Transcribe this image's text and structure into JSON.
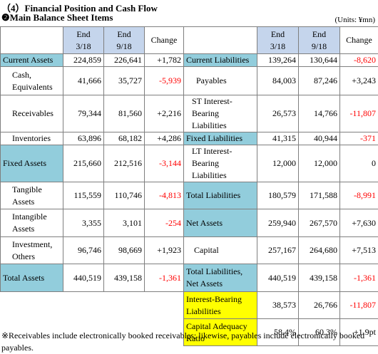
{
  "header": {
    "title": "（4）Financial Position and Cash Flow",
    "subtitle": "❷Main Balance Sheet Items",
    "units": "(Units: ¥mn)"
  },
  "table": {
    "left_header": [
      "End\n3/18",
      "End\n9/18",
      "Change"
    ],
    "right_header": [
      "End\n3/18",
      "End\n9/18",
      "Change"
    ],
    "left_rows": [
      [
        "Current Assets",
        "224,859",
        "226,641",
        "+1,782"
      ],
      [
        "Cash,\nEquivalents",
        "41,666",
        "35,727",
        "-5,939"
      ],
      [
        "Receivables",
        "79,344",
        "81,560",
        "+2,216"
      ],
      [
        "Inventories",
        "63,896",
        "68,182",
        "+4,286"
      ],
      [
        "Fixed Assets",
        "215,660",
        "212,516",
        "-3,144"
      ],
      [
        "Tangible\nAssets",
        "115,559",
        "110,746",
        "-4,813"
      ],
      [
        "Intangible\nAssets",
        "3,355",
        "3,101",
        "-254"
      ],
      [
        "Investment,\nOthers",
        "96,746",
        "98,669",
        "+1,923"
      ],
      [
        "Total Assets",
        "440,519",
        "439,158",
        "-1,361"
      ]
    ],
    "right_rows": [
      [
        "Current Liabilities",
        "139,264",
        "130,644",
        "-8,620"
      ],
      [
        "Payables",
        "84,003",
        "87,246",
        "+3,243"
      ],
      [
        "ST Interest-\nBearing Liabilities",
        "26,573",
        "14,766",
        "-11,807"
      ],
      [
        "Fixed Liabilities",
        "41,315",
        "40,944",
        "-371"
      ],
      [
        "LT Interest-\nBearing Liabilities",
        "12,000",
        "12,000",
        "0"
      ],
      [
        "Total Liabilities",
        "180,579",
        "171,588",
        "-8,991"
      ],
      [
        "Net Assets",
        "259,940",
        "267,570",
        "+7,630"
      ],
      [
        "Capital",
        "257,167",
        "264,680",
        "+7,513"
      ],
      [
        "Total Liabilities,\nNet Assets",
        "440,519",
        "439,158",
        "-1,361"
      ],
      [
        "Interest-Bearing\nLiabilities",
        "38,573",
        "26,766",
        "-11,807"
      ],
      [
        "Capital Adequacy\nRatio",
        "58.4%",
        "60.3%",
        "+1.9pt"
      ]
    ]
  },
  "footnote": "※Receivables include electronically booked receivables; likewise, payables include electronically booked payables."
}
